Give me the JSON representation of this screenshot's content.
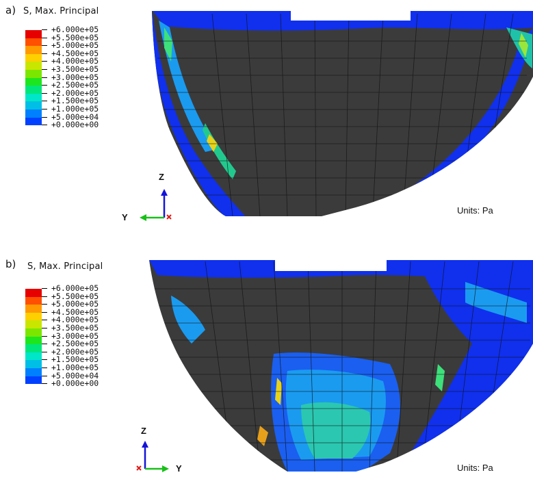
{
  "panels": [
    {
      "letter": "a)",
      "legend_title": "S, Max. Principal",
      "axes": {
        "vertical": "Z",
        "horizontal": "Y"
      },
      "units": "Units: Pa"
    },
    {
      "letter": "b)",
      "legend_title": "S, Max. Principal",
      "axes": {
        "vertical": "Z",
        "horizontal": "Y"
      },
      "units": "Units: Pa"
    }
  ],
  "legend_levels": [
    "+6.000e+05",
    "+5.500e+05",
    "+5.000e+05",
    "+4.500e+05",
    "+4.000e+05",
    "+3.500e+05",
    "+3.000e+05",
    "+2.500e+05",
    "+2.000e+05",
    "+1.500e+05",
    "+1.000e+05",
    "+5.000e+04",
    "+0.000e+00"
  ],
  "legend_colors": [
    "#e60000",
    "#ff4f00",
    "#ff9a00",
    "#ffd000",
    "#c9e600",
    "#7be600",
    "#1ee61e",
    "#00e67b",
    "#00e6c8",
    "#00bfe6",
    "#0080ff",
    "#0040ff"
  ],
  "colors": {
    "mesh_gray": "#3b3b3b",
    "mesh_line": "#111111",
    "axis_z": "#1414d8",
    "axis_y": "#18c018",
    "axis_x": "#e01818"
  }
}
